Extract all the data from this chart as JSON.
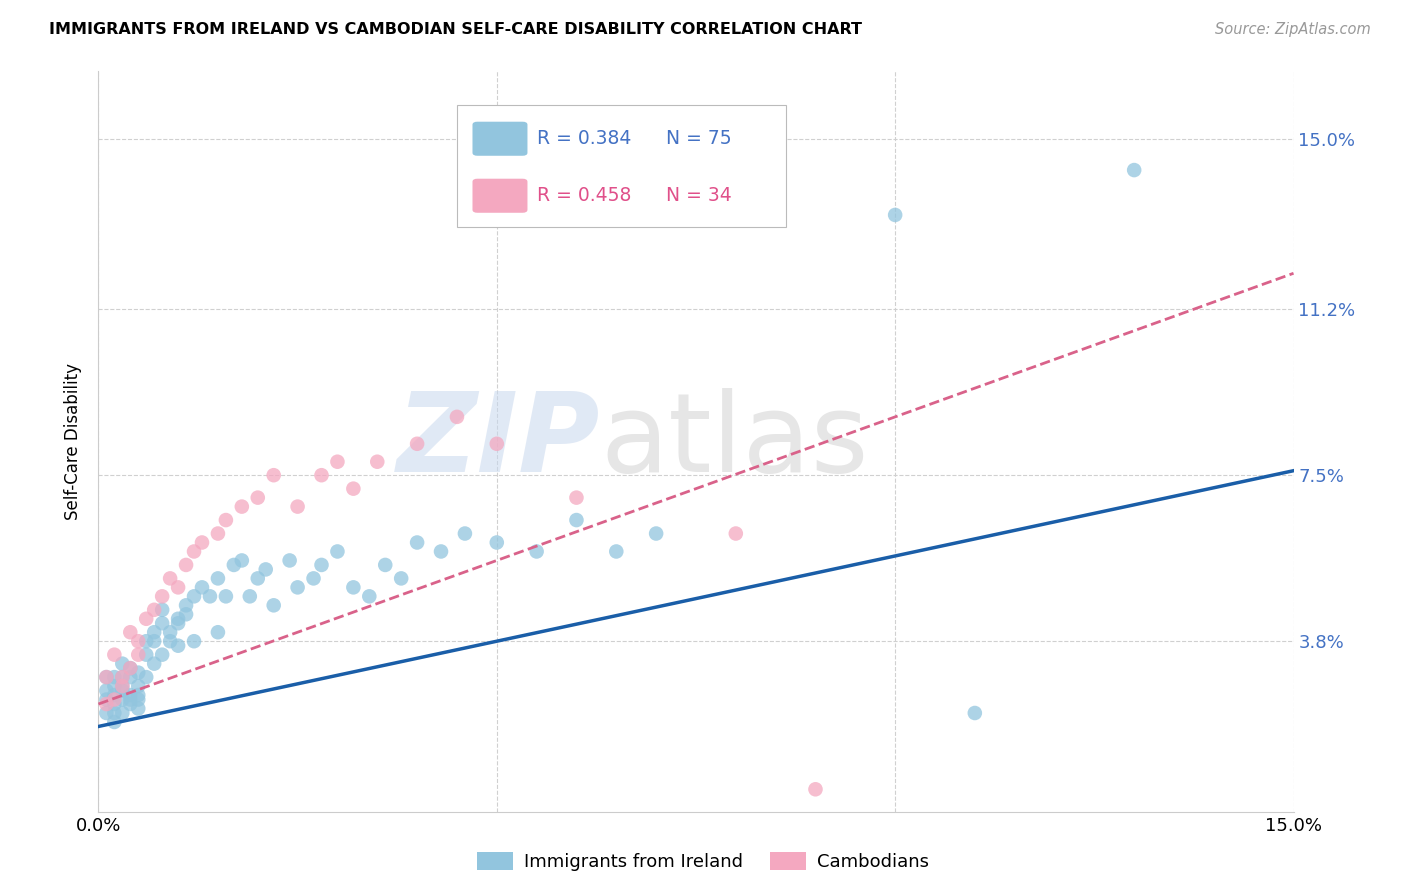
{
  "title": "IMMIGRANTS FROM IRELAND VS CAMBODIAN SELF-CARE DISABILITY CORRELATION CHART",
  "source": "Source: ZipAtlas.com",
  "ylabel": "Self-Care Disability",
  "ytick_labels": [
    "15.0%",
    "11.2%",
    "7.5%",
    "3.8%"
  ],
  "ytick_values": [
    0.15,
    0.112,
    0.075,
    0.038
  ],
  "xlim": [
    0.0,
    0.15
  ],
  "ylim": [
    0.0,
    0.165
  ],
  "legend1_r": "R = 0.384",
  "legend1_n": "N = 75",
  "legend2_r": "R = 0.458",
  "legend2_n": "N = 34",
  "color_blue": "#92c5de",
  "color_pink": "#f4a8c0",
  "color_blue_dark": "#1a5ea8",
  "color_pink_dark": "#d9628a",
  "background": "#ffffff",
  "ireland_trendline_y_start": 0.019,
  "ireland_trendline_y_end": 0.076,
  "cambodian_trendline_y_start": 0.024,
  "cambodian_trendline_y_end": 0.12,
  "ireland_x": [
    0.001,
    0.001,
    0.001,
    0.001,
    0.002,
    0.002,
    0.002,
    0.002,
    0.002,
    0.002,
    0.003,
    0.003,
    0.003,
    0.003,
    0.003,
    0.003,
    0.004,
    0.004,
    0.004,
    0.004,
    0.004,
    0.005,
    0.005,
    0.005,
    0.005,
    0.005,
    0.006,
    0.006,
    0.006,
    0.007,
    0.007,
    0.007,
    0.008,
    0.008,
    0.008,
    0.009,
    0.009,
    0.01,
    0.01,
    0.01,
    0.011,
    0.011,
    0.012,
    0.012,
    0.013,
    0.014,
    0.015,
    0.015,
    0.016,
    0.017,
    0.018,
    0.019,
    0.02,
    0.021,
    0.022,
    0.024,
    0.025,
    0.027,
    0.028,
    0.03,
    0.032,
    0.034,
    0.036,
    0.038,
    0.04,
    0.043,
    0.046,
    0.05,
    0.055,
    0.06,
    0.065,
    0.07,
    0.1,
    0.11,
    0.13
  ],
  "ireland_y": [
    0.025,
    0.03,
    0.022,
    0.027,
    0.028,
    0.024,
    0.03,
    0.026,
    0.022,
    0.02,
    0.028,
    0.025,
    0.03,
    0.022,
    0.027,
    0.033,
    0.025,
    0.03,
    0.032,
    0.026,
    0.024,
    0.028,
    0.023,
    0.026,
    0.031,
    0.025,
    0.03,
    0.035,
    0.038,
    0.04,
    0.038,
    0.033,
    0.035,
    0.042,
    0.045,
    0.038,
    0.04,
    0.037,
    0.043,
    0.042,
    0.044,
    0.046,
    0.048,
    0.038,
    0.05,
    0.048,
    0.052,
    0.04,
    0.048,
    0.055,
    0.056,
    0.048,
    0.052,
    0.054,
    0.046,
    0.056,
    0.05,
    0.052,
    0.055,
    0.058,
    0.05,
    0.048,
    0.055,
    0.052,
    0.06,
    0.058,
    0.062,
    0.06,
    0.058,
    0.065,
    0.058,
    0.062,
    0.133,
    0.022,
    0.143
  ],
  "cambodian_x": [
    0.001,
    0.001,
    0.002,
    0.002,
    0.003,
    0.003,
    0.004,
    0.004,
    0.005,
    0.005,
    0.006,
    0.007,
    0.008,
    0.009,
    0.01,
    0.011,
    0.012,
    0.013,
    0.015,
    0.016,
    0.018,
    0.02,
    0.022,
    0.025,
    0.028,
    0.03,
    0.032,
    0.035,
    0.04,
    0.045,
    0.05,
    0.06,
    0.08,
    0.09
  ],
  "cambodian_y": [
    0.024,
    0.03,
    0.025,
    0.035,
    0.028,
    0.03,
    0.032,
    0.04,
    0.035,
    0.038,
    0.043,
    0.045,
    0.048,
    0.052,
    0.05,
    0.055,
    0.058,
    0.06,
    0.062,
    0.065,
    0.068,
    0.07,
    0.075,
    0.068,
    0.075,
    0.078,
    0.072,
    0.078,
    0.082,
    0.088,
    0.082,
    0.07,
    0.062,
    0.005
  ]
}
